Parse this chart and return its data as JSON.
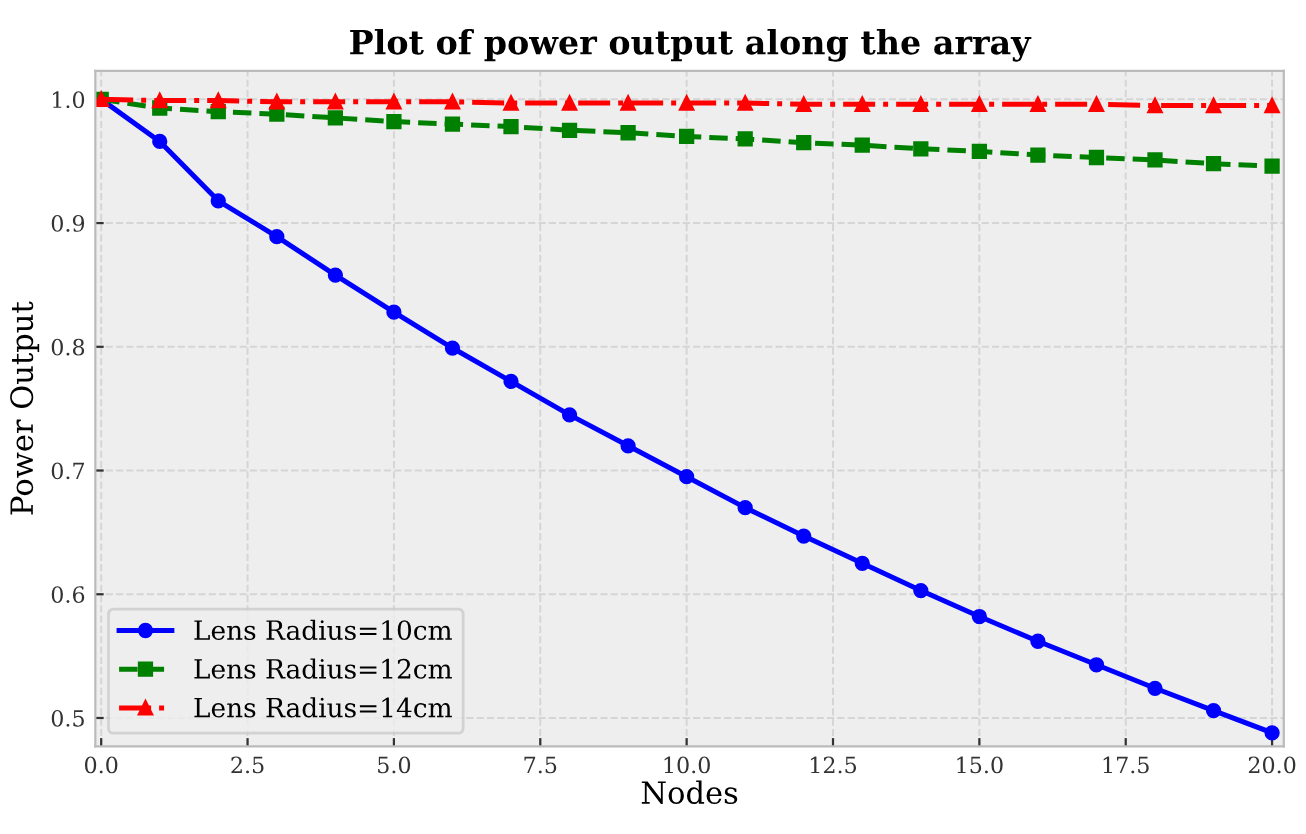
{
  "chart_data": {
    "type": "line",
    "title": "Plot of power output along the array",
    "xlabel": "Nodes",
    "ylabel": "Power Output",
    "x": [
      0,
      1,
      2,
      3,
      4,
      5,
      6,
      7,
      8,
      9,
      10,
      11,
      12,
      13,
      14,
      15,
      16,
      17,
      18,
      19,
      20
    ],
    "series": [
      {
        "name": "Lens Radius=10cm",
        "color": "#0000ff",
        "marker": "circle",
        "line_style": "solid",
        "values": [
          1.0,
          0.966,
          0.918,
          0.889,
          0.858,
          0.828,
          0.799,
          0.772,
          0.745,
          0.72,
          0.695,
          0.67,
          0.647,
          0.625,
          0.603,
          0.582,
          0.562,
          0.543,
          0.524,
          0.506,
          0.488
        ]
      },
      {
        "name": "Lens Radius=12cm",
        "color": "#008000",
        "marker": "square",
        "line_style": "dashed",
        "values": [
          1.0,
          0.993,
          0.99,
          0.988,
          0.985,
          0.982,
          0.98,
          0.978,
          0.975,
          0.973,
          0.97,
          0.968,
          0.965,
          0.963,
          0.96,
          0.958,
          0.955,
          0.953,
          0.951,
          0.948,
          0.946
        ]
      },
      {
        "name": "Lens Radius=14cm",
        "color": "#ff0000",
        "marker": "triangle",
        "line_style": "dashdot",
        "values": [
          1.0,
          0.999,
          0.999,
          0.998,
          0.998,
          0.998,
          0.998,
          0.997,
          0.997,
          0.997,
          0.997,
          0.997,
          0.996,
          0.996,
          0.996,
          0.996,
          0.996,
          0.996,
          0.995,
          0.995,
          0.995
        ]
      }
    ],
    "xlim": [
      -0.1,
      20.2
    ],
    "ylim": [
      0.477,
      1.023
    ],
    "xticks": [
      {
        "value": 0,
        "label": "0.0"
      },
      2.5,
      {
        "value": 5,
        "label": "5.0"
      },
      7.5,
      {
        "value": 10,
        "label": "10.0"
      },
      12.5,
      {
        "value": 15,
        "label": "15.0"
      },
      17.5,
      {
        "value": 20,
        "label": "20.0"
      }
    ],
    "yticks": [
      0.5,
      0.6,
      0.7,
      0.8,
      0.9,
      {
        "value": 1,
        "label": "1.0"
      }
    ],
    "grid": true,
    "legend": "bottom left"
  }
}
